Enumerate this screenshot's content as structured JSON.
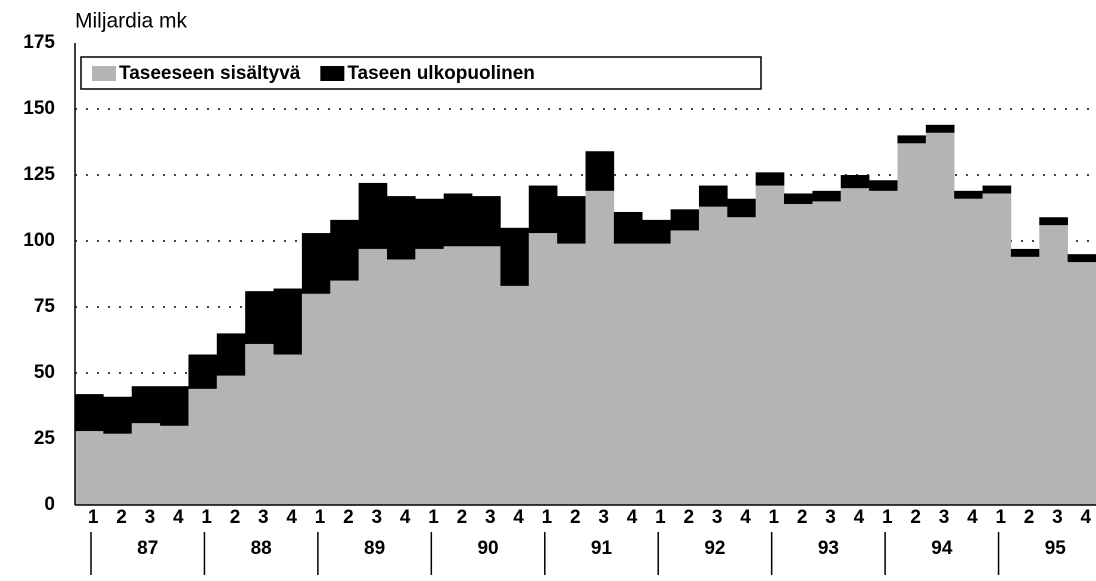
{
  "chart_data": {
    "type": "stacked_bar",
    "y_axis_label": "Miljardia mk",
    "categories": [
      "1",
      "2",
      "3",
      "4",
      "1",
      "2",
      "3",
      "4",
      "1",
      "2",
      "3",
      "4",
      "1",
      "2",
      "3",
      "4",
      "1",
      "2",
      "3",
      "4",
      "1",
      "2",
      "3",
      "4",
      "1",
      "2",
      "3",
      "4",
      "1",
      "2",
      "3",
      "4",
      "1",
      "2",
      "3",
      "4"
    ],
    "year_labels": [
      "87",
      "88",
      "89",
      "90",
      "91",
      "92",
      "93",
      "94",
      "95"
    ],
    "series": [
      {
        "name": "Taseeseen sisältyvä",
        "color": "#b4b4b4",
        "values": [
          28,
          27,
          31,
          30,
          44,
          49,
          61,
          57,
          80,
          85,
          97,
          93,
          97,
          98,
          98,
          83,
          103,
          99,
          119,
          99,
          99,
          104,
          113,
          109,
          121,
          114,
          115,
          120,
          119,
          137,
          141,
          116,
          118,
          94,
          106,
          92
        ]
      },
      {
        "name": "Taseen ulkopuolinen",
        "color": "#000000",
        "values": [
          14,
          14,
          14,
          15,
          13,
          16,
          20,
          25,
          23,
          23,
          25,
          24,
          19,
          20,
          19,
          22,
          18,
          18,
          15,
          12,
          9,
          8,
          8,
          7,
          5,
          4,
          4,
          5,
          4,
          3,
          3,
          3,
          3,
          3,
          3,
          3
        ]
      }
    ],
    "ylim": [
      0,
      175
    ],
    "yticks": [
      0,
      25,
      50,
      75,
      100,
      125,
      150,
      175
    ],
    "grid": true
  }
}
